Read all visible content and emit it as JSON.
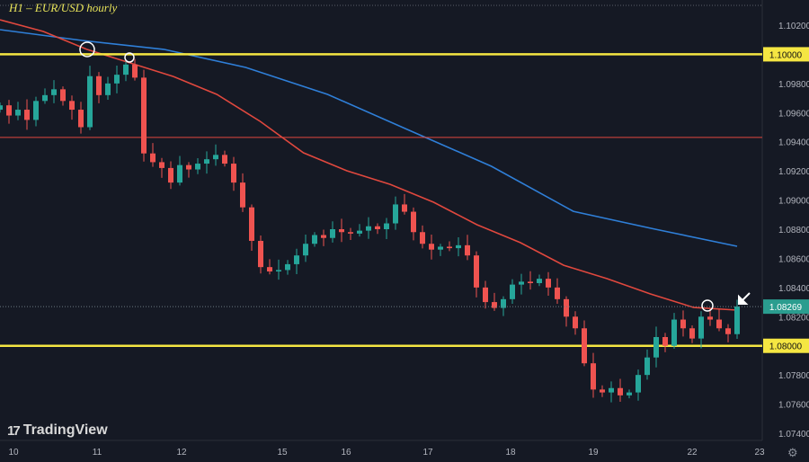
{
  "header": {
    "title": "H1 – EUR/USD hourly"
  },
  "branding": {
    "logo_text": "TradingView"
  },
  "chart_data": {
    "type": "candlestick",
    "title": "H1 – EUR/USD hourly",
    "ylim": [
      1.0735,
      1.1032
    ],
    "y_ticks": [
      "1.10200",
      "1.09800",
      "1.09600",
      "1.09400",
      "1.09200",
      "1.09000",
      "1.08800",
      "1.08600",
      "1.08400",
      "1.08200",
      "1.07800",
      "1.07600",
      "1.07400"
    ],
    "x_ticks": [
      "10",
      "11",
      "12",
      "15",
      "16",
      "17",
      "18",
      "19",
      "22",
      "23"
    ],
    "closes": [
      1.0965,
      1.0958,
      1.0962,
      1.0955,
      1.0968,
      1.0972,
      1.0976,
      1.0968,
      1.0962,
      1.095,
      1.0985,
      1.0972,
      1.098,
      1.0986,
      1.0993,
      1.0984,
      1.0932,
      1.0926,
      1.0922,
      1.0912,
      1.0924,
      1.0921,
      1.0925,
      1.0928,
      1.0931,
      1.0925,
      1.0912,
      1.0895,
      1.0872,
      1.0854,
      1.0851,
      1.0852,
      1.0856,
      1.0862,
      1.087,
      1.0876,
      1.0874,
      1.088,
      1.0878,
      1.0877,
      1.0879,
      1.0882,
      1.088,
      1.0884,
      1.0897,
      1.0892,
      1.0878,
      1.087,
      1.0866,
      1.0868,
      1.0867,
      1.0869,
      1.0862,
      1.084,
      1.083,
      1.0826,
      1.0832,
      1.0842,
      1.0844,
      1.0843,
      1.0846,
      1.084,
      1.0832,
      1.082,
      1.0812,
      1.0788,
      1.077,
      1.0768,
      1.0771,
      1.0766,
      1.0768,
      1.078,
      1.0792,
      1.0806,
      1.08,
      1.0818,
      1.0812,
      1.0805,
      1.082,
      1.0818,
      1.0812,
      1.0808,
      1.0827
    ],
    "moving_averages": [
      {
        "color": "#2f7fd8",
        "values": [
          1.10169,
          1.10095,
          1.10034,
          1.0991,
          1.09725,
          1.09478,
          1.09232,
          1.08923,
          1.088,
          1.08683
        ]
      },
      {
        "color": "#e0483e",
        "values": [
          1.10237,
          1.10157,
          1.10034,
          1.09941,
          1.09848,
          1.09725,
          1.0954,
          1.09324,
          1.09201,
          1.09108,
          1.08985,
          1.08831,
          1.08708,
          1.08553,
          1.08461,
          1.08356,
          1.08263,
          1.08245
        ]
      }
    ],
    "horizontal_levels": [
      {
        "price": 1.1,
        "label": "1.10000",
        "color": "#f5e642"
      },
      {
        "price": 1.08,
        "label": "1.08000",
        "color": "#f5e642"
      },
      {
        "price": 1.0943,
        "color": "#e0483e"
      }
    ],
    "current_price": {
      "price": 1.08269,
      "label": "1.08269",
      "color": "#2a9d8f"
    },
    "colors": {
      "up": "#26a69a",
      "down": "#ef5350",
      "background": "#151924"
    }
  }
}
